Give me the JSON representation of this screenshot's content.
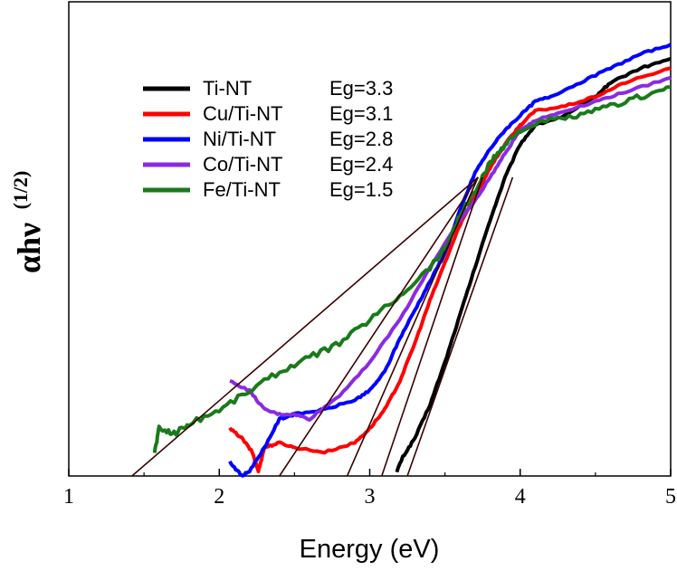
{
  "chart_data": {
    "type": "line",
    "title": "",
    "xlabel": "Energy (eV)",
    "ylabel": "αhν",
    "ylabel_superscript": "(1/2)",
    "xlim": [
      1,
      5
    ],
    "ylim": [
      0,
      1
    ],
    "x_ticks": [
      1,
      2,
      3,
      4,
      5
    ],
    "y_ticks_shown": false,
    "grid": false,
    "legend_position": "upper-left",
    "series": [
      {
        "name": "Ti-NT",
        "eg_label": "Eg=3.3",
        "color": "#000000",
        "points": [
          [
            3.18,
            0.01
          ],
          [
            3.22,
            0.04
          ],
          [
            3.3,
            0.08
          ],
          [
            3.4,
            0.15
          ],
          [
            3.5,
            0.24
          ],
          [
            3.6,
            0.34
          ],
          [
            3.7,
            0.44
          ],
          [
            3.8,
            0.54
          ],
          [
            3.9,
            0.63
          ],
          [
            4.0,
            0.7
          ],
          [
            4.1,
            0.74
          ],
          [
            4.3,
            0.76
          ],
          [
            4.5,
            0.8
          ],
          [
            4.6,
            0.83
          ],
          [
            4.8,
            0.86
          ],
          [
            5.0,
            0.88
          ]
        ]
      },
      {
        "name": "Cu/Ti-NT",
        "eg_label": "Eg=3.1",
        "color": "#ff0000",
        "points": [
          [
            2.07,
            0.1
          ],
          [
            2.15,
            0.08
          ],
          [
            2.22,
            0.05
          ],
          [
            2.26,
            0.01
          ],
          [
            2.3,
            0.06
          ],
          [
            2.4,
            0.07
          ],
          [
            2.5,
            0.06
          ],
          [
            2.7,
            0.05
          ],
          [
            2.9,
            0.07
          ],
          [
            3.0,
            0.1
          ],
          [
            3.1,
            0.14
          ],
          [
            3.2,
            0.2
          ],
          [
            3.3,
            0.28
          ],
          [
            3.4,
            0.37
          ],
          [
            3.5,
            0.45
          ],
          [
            3.6,
            0.53
          ],
          [
            3.7,
            0.59
          ],
          [
            3.8,
            0.65
          ],
          [
            3.9,
            0.7
          ],
          [
            4.0,
            0.74
          ],
          [
            4.1,
            0.77
          ],
          [
            4.3,
            0.78
          ],
          [
            4.5,
            0.8
          ],
          [
            4.7,
            0.83
          ],
          [
            5.0,
            0.86
          ]
        ]
      },
      {
        "name": "Ni/Ti-NT",
        "eg_label": "Eg=2.8",
        "color": "#0000ff",
        "points": [
          [
            2.07,
            0.03
          ],
          [
            2.15,
            0.0
          ],
          [
            2.2,
            0.01
          ],
          [
            2.3,
            0.06
          ],
          [
            2.4,
            0.12
          ],
          [
            2.5,
            0.13
          ],
          [
            2.7,
            0.14
          ],
          [
            2.9,
            0.16
          ],
          [
            3.0,
            0.18
          ],
          [
            3.1,
            0.22
          ],
          [
            3.2,
            0.29
          ],
          [
            3.3,
            0.35
          ],
          [
            3.4,
            0.41
          ],
          [
            3.5,
            0.47
          ],
          [
            3.6,
            0.56
          ],
          [
            3.7,
            0.64
          ],
          [
            3.8,
            0.69
          ],
          [
            3.9,
            0.73
          ],
          [
            4.0,
            0.76
          ],
          [
            4.1,
            0.79
          ],
          [
            4.2,
            0.8
          ],
          [
            4.4,
            0.83
          ],
          [
            4.6,
            0.86
          ],
          [
            4.8,
            0.89
          ],
          [
            5.0,
            0.91
          ]
        ]
      },
      {
        "name": "Co/Ti-NT",
        "eg_label": "Eg=2.4",
        "color": "#8a2be2",
        "points": [
          [
            2.07,
            0.2
          ],
          [
            2.2,
            0.18
          ],
          [
            2.3,
            0.14
          ],
          [
            2.4,
            0.13
          ],
          [
            2.5,
            0.13
          ],
          [
            2.6,
            0.12
          ],
          [
            2.8,
            0.17
          ],
          [
            3.0,
            0.24
          ],
          [
            3.2,
            0.33
          ],
          [
            3.4,
            0.44
          ],
          [
            3.6,
            0.54
          ],
          [
            3.7,
            0.58
          ],
          [
            3.8,
            0.63
          ],
          [
            3.9,
            0.68
          ],
          [
            4.0,
            0.73
          ],
          [
            4.1,
            0.75
          ],
          [
            4.3,
            0.77
          ],
          [
            4.5,
            0.79
          ],
          [
            4.7,
            0.81
          ],
          [
            5.0,
            0.84
          ]
        ]
      },
      {
        "name": "Fe/Ti-NT",
        "eg_label": "Eg=1.5",
        "color": "#1a7a1a",
        "points": [
          [
            1.57,
            0.05
          ],
          [
            1.6,
            0.1
          ],
          [
            1.7,
            0.09
          ],
          [
            1.8,
            0.11
          ],
          [
            2.0,
            0.14
          ],
          [
            2.2,
            0.18
          ],
          [
            2.4,
            0.22
          ],
          [
            2.6,
            0.25
          ],
          [
            2.8,
            0.28
          ],
          [
            3.0,
            0.33
          ],
          [
            3.2,
            0.38
          ],
          [
            3.4,
            0.44
          ],
          [
            3.5,
            0.48
          ],
          [
            3.6,
            0.55
          ],
          [
            3.7,
            0.6
          ],
          [
            3.8,
            0.66
          ],
          [
            3.9,
            0.7
          ],
          [
            4.0,
            0.73
          ],
          [
            4.2,
            0.75
          ],
          [
            4.4,
            0.76
          ],
          [
            4.6,
            0.78
          ],
          [
            4.8,
            0.8
          ],
          [
            5.0,
            0.82
          ]
        ]
      }
    ],
    "tangent_lines": [
      {
        "name": "Fe/Ti-NT tangent",
        "color": "#3a0000",
        "from": [
          1.42,
          0.0
        ],
        "to": [
          3.72,
          0.63
        ]
      },
      {
        "name": "Co/Ti-NT tangent",
        "color": "#3a0000",
        "from": [
          2.4,
          0.0
        ],
        "to": [
          3.72,
          0.63
        ]
      },
      {
        "name": "Ni/Ti-NT tangent",
        "color": "#3a0000",
        "from": [
          2.85,
          0.0
        ],
        "to": [
          3.72,
          0.63
        ]
      },
      {
        "name": "Cu/Ti-NT tangent",
        "color": "#3a0000",
        "from": [
          3.08,
          0.0
        ],
        "to": [
          3.75,
          0.63
        ]
      },
      {
        "name": "Ti-NT tangent",
        "color": "#3a0000",
        "from": [
          3.25,
          0.0
        ],
        "to": [
          3.95,
          0.63
        ]
      }
    ]
  }
}
